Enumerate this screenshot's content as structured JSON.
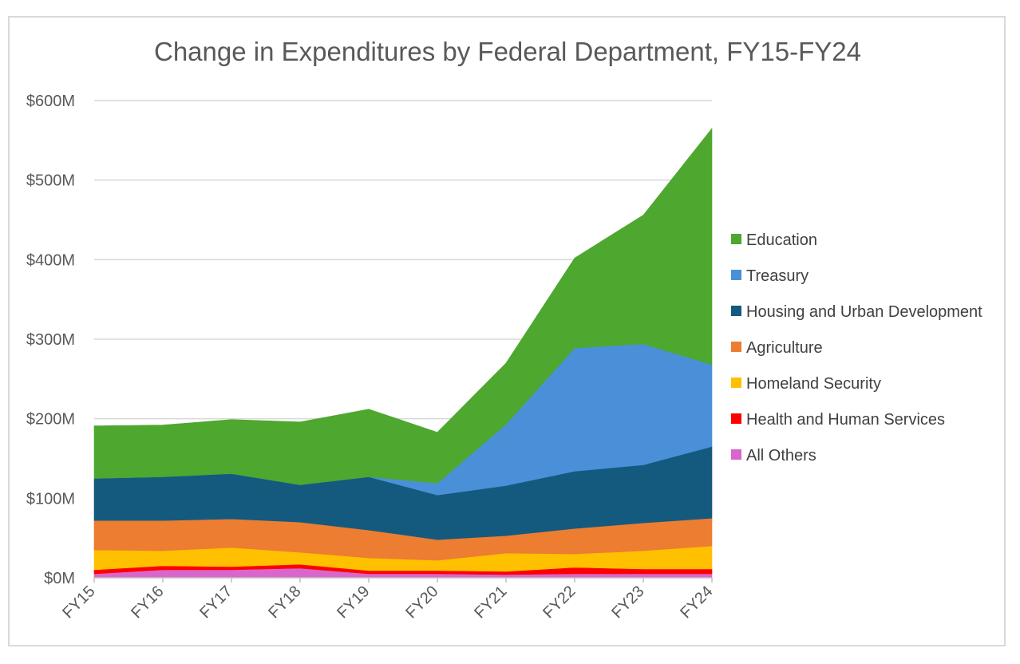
{
  "chart_data": {
    "type": "area",
    "stacked": true,
    "title": "Change in Expenditures by Federal Department, FY15-FY24",
    "xlabel": "",
    "ylabel": "",
    "categories": [
      "FY15",
      "FY16",
      "FY17",
      "FY18",
      "FY19",
      "FY20",
      "FY21",
      "FY22",
      "FY23",
      "FY24"
    ],
    "ylim": [
      0,
      600
    ],
    "yticks": [
      0,
      100,
      200,
      300,
      400,
      500,
      600
    ],
    "ytick_labels": [
      "$0M",
      "$100M",
      "$200M",
      "$300M",
      "$400M",
      "$500M",
      "$600M"
    ],
    "grid": true,
    "legend_position": "right",
    "series": [
      {
        "name": "All Others",
        "color": "#D966CC",
        "values": [
          5,
          10,
          10,
          12,
          5,
          5,
          4,
          5,
          5,
          5
        ]
      },
      {
        "name": "Health and Human Services",
        "color": "#FF0000",
        "values": [
          5,
          5,
          4,
          5,
          4,
          4,
          4,
          8,
          6,
          6
        ]
      },
      {
        "name": "Homeland Security",
        "color": "#FFC000",
        "values": [
          25,
          19,
          24,
          15,
          16,
          13,
          23,
          17,
          23,
          29
        ]
      },
      {
        "name": "Agriculture",
        "color": "#ED7D31",
        "values": [
          37,
          38,
          36,
          38,
          35,
          26,
          22,
          32,
          35,
          35
        ]
      },
      {
        "name": "Housing and Urban Development",
        "color": "#145A7E",
        "values": [
          53,
          55,
          57,
          47,
          67,
          56,
          63,
          72,
          73,
          90
        ]
      },
      {
        "name": "Treasury",
        "color": "#4A90D9",
        "values": [
          0,
          0,
          0,
          0,
          0,
          15,
          77,
          155,
          152,
          103
        ]
      },
      {
        "name": "Education",
        "color": "#4EA72E",
        "values": [
          66,
          65,
          68,
          79,
          85,
          64,
          77,
          113,
          162,
          297
        ]
      }
    ],
    "legend_order": [
      "Education",
      "Treasury",
      "Housing and Urban Development",
      "Agriculture",
      "Homeland Security",
      "Health and Human Services",
      "All Others"
    ]
  }
}
